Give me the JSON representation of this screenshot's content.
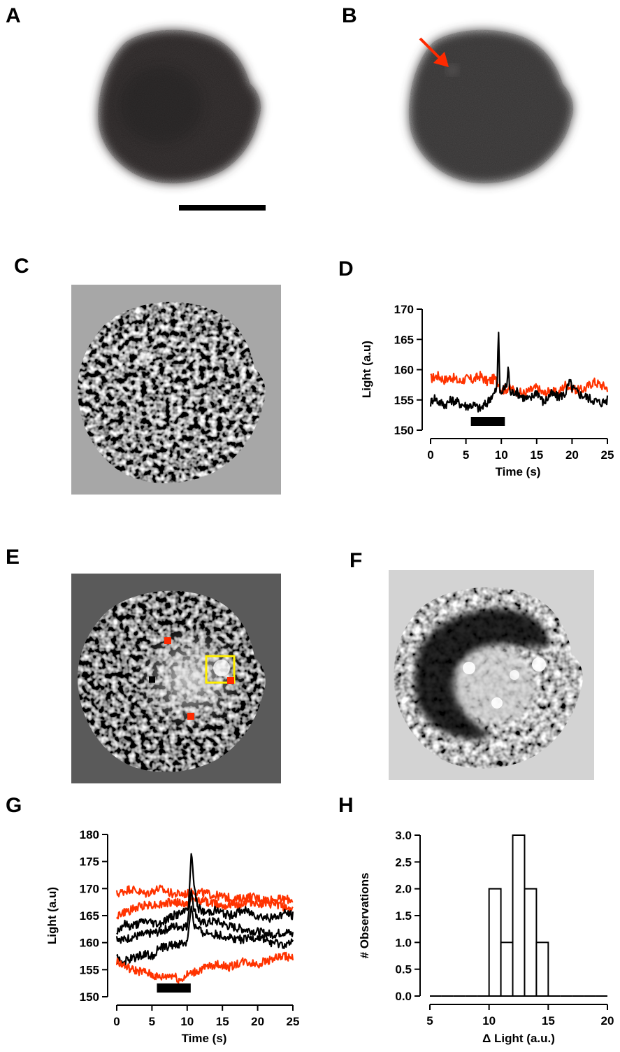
{
  "panels": {
    "a": "A",
    "b": "B",
    "c": "C",
    "d": "D",
    "e": "E",
    "f": "F",
    "g": "G",
    "h": "H"
  },
  "colors": {
    "red_trace": "#ff3300",
    "black_trace": "#000000",
    "arrow": "#ff2a00",
    "roi_yellow": "#ffee00",
    "roi_red": "#ff2a00"
  },
  "chart_data": [
    {
      "panel": "D",
      "type": "line",
      "xlabel": "Time (s)",
      "ylabel": "Light (a.u)",
      "xlim": [
        0,
        25
      ],
      "ylim": [
        150,
        170
      ],
      "xticks": [
        0,
        5,
        10,
        15,
        20,
        25
      ],
      "yticks": [
        150,
        155,
        160,
        165,
        170
      ],
      "stimulus_bar": [
        5.7,
        10.5
      ],
      "series": [
        {
          "color": "#ff3300",
          "x": [
            0,
            1,
            2,
            3,
            4,
            5,
            6,
            7,
            8,
            9,
            9.6,
            10,
            11,
            12,
            13,
            14,
            15,
            16,
            17,
            18,
            19,
            20,
            21,
            22,
            23,
            24,
            25
          ],
          "y": [
            158.5,
            159,
            158.3,
            158.8,
            158,
            158.5,
            158.3,
            159,
            158,
            158.5,
            158,
            156.5,
            157,
            156.5,
            156,
            156.5,
            157,
            156,
            156.5,
            156,
            157.5,
            157,
            156.5,
            157,
            158,
            157.5,
            157
          ]
        },
        {
          "color": "#000000",
          "x": [
            0,
            0.5,
            1,
            2,
            3,
            4,
            5,
            6,
            7,
            8,
            8.5,
            9,
            9.4,
            9.6,
            9.8,
            10.2,
            10.8,
            11,
            11.2,
            12,
            13,
            14,
            15,
            16,
            17,
            18,
            19,
            19.7,
            20,
            21,
            22,
            23,
            24,
            25
          ],
          "y": [
            154.5,
            155.5,
            154.8,
            154.2,
            155,
            154.5,
            154,
            154.2,
            153.5,
            154.5,
            155.5,
            156,
            157,
            167,
            156,
            156.5,
            157.5,
            161,
            156,
            156.5,
            155.5,
            155,
            156.5,
            154.5,
            156,
            155.5,
            156,
            158,
            157,
            156,
            155.5,
            155,
            154.5,
            155
          ]
        }
      ]
    },
    {
      "panel": "G",
      "type": "line",
      "xlabel": "Time (s)",
      "ylabel": "Light (a.u)",
      "xlim": [
        0,
        25
      ],
      "ylim": [
        150,
        180
      ],
      "xticks": [
        0,
        5,
        10,
        15,
        20,
        25
      ],
      "yticks": [
        150,
        155,
        160,
        165,
        170,
        175,
        180
      ],
      "stimulus_bar": [
        5.7,
        10.5
      ],
      "series": [
        {
          "color": "#ff3300",
          "x": [
            0,
            2,
            4,
            6,
            8,
            10,
            11,
            13,
            15,
            17,
            19,
            21,
            23,
            25
          ],
          "y": [
            169,
            170,
            169,
            170,
            169,
            169,
            169.5,
            169,
            168.5,
            168,
            168.5,
            168,
            168,
            168
          ]
        },
        {
          "color": "#ff3300",
          "x": [
            0,
            2,
            4,
            6,
            8,
            10,
            11,
            13,
            15,
            17,
            19,
            21,
            23,
            25
          ],
          "y": [
            165,
            166,
            167,
            167,
            167.5,
            167,
            168,
            167.5,
            167,
            167,
            167.5,
            167,
            167,
            166
          ]
        },
        {
          "color": "#000000",
          "x": [
            0,
            1,
            2,
            4,
            6,
            8,
            9.5,
            10.2,
            10.6,
            11,
            11.5,
            12.5,
            14,
            16,
            18,
            20,
            22,
            24,
            25
          ],
          "y": [
            162,
            163.5,
            163,
            164,
            163.5,
            165,
            165.5,
            167,
            177,
            170,
            166.5,
            165.5,
            166,
            165,
            166,
            165,
            164.5,
            165.5,
            165
          ]
        },
        {
          "color": "#000000",
          "x": [
            0,
            1,
            2,
            4,
            6,
            8,
            10,
            10.6,
            11,
            12,
            14,
            16,
            18,
            20,
            22,
            24,
            25
          ],
          "y": [
            161,
            160.5,
            161,
            161.5,
            162,
            163,
            163,
            170,
            166,
            163.5,
            164,
            163,
            162.5,
            162,
            161.5,
            162,
            161.5
          ]
        },
        {
          "color": "#000000",
          "x": [
            0,
            1,
            2,
            4,
            5,
            6,
            8,
            10,
            10.6,
            11,
            12,
            14,
            16,
            18,
            20,
            22,
            24,
            25
          ],
          "y": [
            157,
            156.5,
            157,
            158,
            157.5,
            159,
            159.5,
            160,
            167,
            163,
            162,
            161.5,
            161,
            160.5,
            161,
            160,
            159.5,
            160
          ]
        },
        {
          "color": "#ff3300",
          "x": [
            0,
            2,
            4,
            6,
            8,
            9,
            10,
            12,
            14,
            16,
            18,
            20,
            22,
            24,
            25
          ],
          "y": [
            156.5,
            155,
            154.5,
            153.5,
            154,
            153,
            154,
            155,
            156,
            155.5,
            156.5,
            156,
            157,
            157.5,
            157
          ]
        }
      ]
    },
    {
      "panel": "H",
      "type": "bar",
      "xlabel": "Δ Light (a.u.)",
      "ylabel": "# Observations",
      "xlim": [
        5,
        20
      ],
      "ylim": [
        0,
        3
      ],
      "xticks": [
        5,
        10,
        15,
        20
      ],
      "yticks": [
        "0.0",
        "0.5",
        "1.0",
        "1.5",
        "2.0",
        "2.5",
        "3.0"
      ],
      "bin_width": 1,
      "bins": [
        5,
        6,
        7,
        8,
        9,
        10,
        11,
        12,
        13,
        14,
        15,
        16,
        17,
        18,
        19
      ],
      "values": [
        0,
        0,
        0,
        0,
        0,
        2,
        1,
        3,
        2,
        1,
        0,
        0,
        0,
        0,
        0
      ]
    }
  ]
}
